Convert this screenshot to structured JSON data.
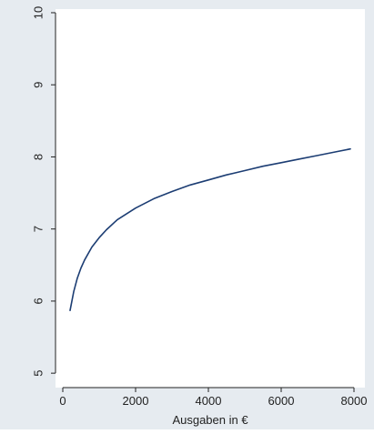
{
  "chart_data": {
    "type": "line",
    "title": "",
    "xlabel": "Ausgaben in €",
    "ylabel": "",
    "xlim": [
      -200,
      8300
    ],
    "ylim": [
      4.8,
      10.05
    ],
    "xticks": [
      0,
      2000,
      4000,
      6000,
      8000
    ],
    "yticks": [
      5,
      6,
      7,
      8,
      9,
      10
    ],
    "xtick_labels": [
      "0",
      "2000",
      "4000",
      "6000",
      "8000"
    ],
    "ytick_labels": [
      "5",
      "6",
      "7",
      "8",
      "9",
      "10"
    ],
    "grid": false,
    "legend": "none",
    "colors": {
      "line": "#1c3d73",
      "outer_background": "#e6ebf0",
      "plot_background": "#ffffff",
      "axis": "#222222"
    },
    "series": [
      {
        "x": [
          200,
          300,
          400,
          500,
          600,
          800,
          1000,
          1200,
          1500,
          2000,
          2500,
          3000,
          3500,
          4000,
          4500,
          5000,
          5500,
          6000,
          6500,
          7000,
          7500,
          7900
        ],
        "values": [
          5.87,
          6.13,
          6.32,
          6.46,
          6.57,
          6.75,
          6.88,
          6.99,
          7.13,
          7.29,
          7.42,
          7.52,
          7.61,
          7.68,
          7.75,
          7.81,
          7.87,
          7.92,
          7.97,
          8.02,
          8.07,
          8.11
        ]
      }
    ]
  }
}
